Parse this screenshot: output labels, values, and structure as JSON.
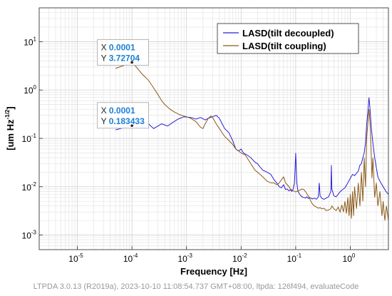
{
  "chart_data": {
    "type": "line",
    "xscale": "log",
    "yscale": "log",
    "xlim": [
      2e-06,
      5
    ],
    "ylim": [
      0.0005,
      50
    ],
    "xlabel": "Frequency  [Hz]",
    "ylabel_main": "[um Hz",
    "ylabel_exp": "-1/2",
    "ylabel_end": "]",
    "grid": true,
    "legend_position": "top-right",
    "x_ticks": [
      {
        "value": 1e-05,
        "base": "10",
        "exp": "-5"
      },
      {
        "value": 0.0001,
        "base": "10",
        "exp": "-4"
      },
      {
        "value": 0.001,
        "base": "10",
        "exp": "-3"
      },
      {
        "value": 0.01,
        "base": "10",
        "exp": "-2"
      },
      {
        "value": 0.1,
        "base": "10",
        "exp": "-1"
      },
      {
        "value": 1,
        "base": "10",
        "exp": "0"
      }
    ],
    "y_ticks": [
      {
        "value": 0.001,
        "base": "10",
        "exp": "-3"
      },
      {
        "value": 0.01,
        "base": "10",
        "exp": "-2"
      },
      {
        "value": 0.1,
        "base": "10",
        "exp": "-1"
      },
      {
        "value": 1,
        "base": "10",
        "exp": "0"
      },
      {
        "value": 10,
        "base": "10",
        "exp": "1"
      }
    ],
    "series": [
      {
        "name": "LASD(tilt decoupled)",
        "color": "#2a1fd6",
        "points": [
          [
            5e-05,
            0.15
          ],
          [
            7e-05,
            0.165
          ],
          [
            0.0001,
            0.183
          ],
          [
            0.00013,
            0.2
          ],
          [
            0.00016,
            0.21
          ],
          [
            0.0002,
            0.2
          ],
          [
            0.00025,
            0.16
          ],
          [
            0.0003,
            0.18
          ],
          [
            0.00035,
            0.2
          ],
          [
            0.00045,
            0.18
          ],
          [
            0.00055,
            0.21
          ],
          [
            0.0007,
            0.25
          ],
          [
            0.0009,
            0.28
          ],
          [
            0.0012,
            0.27
          ],
          [
            0.0015,
            0.25
          ],
          [
            0.0018,
            0.27
          ],
          [
            0.0022,
            0.24
          ],
          [
            0.0025,
            0.26
          ],
          [
            0.003,
            0.28
          ],
          [
            0.0035,
            0.3
          ],
          [
            0.004,
            0.26
          ],
          [
            0.0045,
            0.2
          ],
          [
            0.005,
            0.16
          ],
          [
            0.006,
            0.13
          ],
          [
            0.007,
            0.09
          ],
          [
            0.008,
            0.06
          ],
          [
            0.009,
            0.055
          ],
          [
            0.01,
            0.06
          ],
          [
            0.011,
            0.05
          ],
          [
            0.013,
            0.045
          ],
          [
            0.015,
            0.04
          ],
          [
            0.018,
            0.032
          ],
          [
            0.02,
            0.03
          ],
          [
            0.022,
            0.026
          ],
          [
            0.025,
            0.022
          ],
          [
            0.03,
            0.02
          ],
          [
            0.035,
            0.018
          ],
          [
            0.04,
            0.014
          ],
          [
            0.045,
            0.012
          ],
          [
            0.05,
            0.01
          ],
          [
            0.055,
            0.0095
          ],
          [
            0.06,
            0.011
          ],
          [
            0.065,
            0.0088
          ],
          [
            0.07,
            0.009
          ],
          [
            0.075,
            0.0082
          ],
          [
            0.08,
            0.0086
          ],
          [
            0.085,
            0.008
          ],
          [
            0.09,
            0.009
          ],
          [
            0.095,
            0.012
          ],
          [
            0.1,
            0.05
          ],
          [
            0.105,
            0.012
          ],
          [
            0.11,
            0.008
          ],
          [
            0.12,
            0.0068
          ],
          [
            0.13,
            0.0062
          ],
          [
            0.14,
            0.006
          ],
          [
            0.15,
            0.0058
          ],
          [
            0.16,
            0.0062
          ],
          [
            0.17,
            0.0057
          ],
          [
            0.18,
            0.006
          ],
          [
            0.19,
            0.0058
          ],
          [
            0.2,
            0.0056
          ],
          [
            0.22,
            0.0058
          ],
          [
            0.24,
            0.0055
          ],
          [
            0.26,
            0.0062
          ],
          [
            0.27,
            0.012
          ],
          [
            0.28,
            0.0065
          ],
          [
            0.3,
            0.0058
          ],
          [
            0.33,
            0.0055
          ],
          [
            0.36,
            0.0058
          ],
          [
            0.4,
            0.0062
          ],
          [
            0.44,
            0.008
          ],
          [
            0.45,
            0.028
          ],
          [
            0.46,
            0.009
          ],
          [
            0.5,
            0.0065
          ],
          [
            0.55,
            0.0062
          ],
          [
            0.6,
            0.007
          ],
          [
            0.65,
            0.0078
          ],
          [
            0.7,
            0.0085
          ],
          [
            0.75,
            0.009
          ],
          [
            0.8,
            0.0095
          ],
          [
            0.9,
            0.012
          ],
          [
            1.0,
            0.015
          ],
          [
            1.1,
            0.018
          ],
          [
            1.2,
            0.017
          ],
          [
            1.3,
            0.019
          ],
          [
            1.4,
            0.021
          ],
          [
            1.5,
            0.028
          ],
          [
            1.6,
            0.03
          ],
          [
            1.7,
            0.04
          ],
          [
            1.8,
            0.05
          ],
          [
            1.9,
            0.08
          ],
          [
            2.0,
            0.2
          ],
          [
            2.1,
            0.35
          ],
          [
            2.2,
            0.7
          ],
          [
            2.3,
            0.4
          ],
          [
            2.4,
            0.2
          ],
          [
            2.5,
            0.12
          ],
          [
            2.6,
            0.08
          ],
          [
            2.8,
            0.04
          ],
          [
            3.0,
            0.025
          ],
          [
            3.2,
            0.016
          ],
          [
            3.5,
            0.013
          ],
          [
            4.0,
            0.01
          ],
          [
            4.5,
            0.008
          ],
          [
            5.0,
            0.007
          ]
        ]
      },
      {
        "name": "LASD(tilt coupling)",
        "color": "#8b5a1a",
        "points": [
          [
            5e-05,
            2.8
          ],
          [
            7e-05,
            3.2
          ],
          [
            0.0001,
            3.727
          ],
          [
            0.00012,
            3.0
          ],
          [
            0.00015,
            2.2
          ],
          [
            0.0002,
            1.6
          ],
          [
            0.00025,
            1.1
          ],
          [
            0.0003,
            0.8
          ],
          [
            0.00035,
            0.6
          ],
          [
            0.0004,
            0.5
          ],
          [
            0.0005,
            0.4
          ],
          [
            0.0006,
            0.35
          ],
          [
            0.0007,
            0.32
          ],
          [
            0.0008,
            0.3
          ],
          [
            0.001,
            0.28
          ],
          [
            0.0012,
            0.26
          ],
          [
            0.0015,
            0.22
          ],
          [
            0.0018,
            0.17
          ],
          [
            0.002,
            0.16
          ],
          [
            0.0022,
            0.2
          ],
          [
            0.0025,
            0.26
          ],
          [
            0.0028,
            0.29
          ],
          [
            0.003,
            0.27
          ],
          [
            0.0035,
            0.2
          ],
          [
            0.004,
            0.16
          ],
          [
            0.0045,
            0.13
          ],
          [
            0.005,
            0.11
          ],
          [
            0.006,
            0.09
          ],
          [
            0.007,
            0.075
          ],
          [
            0.008,
            0.06
          ],
          [
            0.01,
            0.05
          ],
          [
            0.012,
            0.045
          ],
          [
            0.015,
            0.03
          ],
          [
            0.018,
            0.022
          ],
          [
            0.02,
            0.02
          ],
          [
            0.025,
            0.016
          ],
          [
            0.03,
            0.013
          ],
          [
            0.035,
            0.012
          ],
          [
            0.04,
            0.012
          ],
          [
            0.045,
            0.011
          ],
          [
            0.05,
            0.012
          ],
          [
            0.055,
            0.014
          ],
          [
            0.06,
            0.016
          ],
          [
            0.065,
            0.012
          ],
          [
            0.07,
            0.011
          ],
          [
            0.075,
            0.01
          ],
          [
            0.08,
            0.009
          ],
          [
            0.085,
            0.0085
          ],
          [
            0.09,
            0.0082
          ],
          [
            0.1,
            0.0078
          ],
          [
            0.11,
            0.0082
          ],
          [
            0.12,
            0.0085
          ],
          [
            0.13,
            0.009
          ],
          [
            0.14,
            0.0088
          ],
          [
            0.15,
            0.008
          ],
          [
            0.17,
            0.0065
          ],
          [
            0.19,
            0.005
          ],
          [
            0.2,
            0.0045
          ],
          [
            0.22,
            0.004
          ],
          [
            0.24,
            0.0038
          ],
          [
            0.26,
            0.0036
          ],
          [
            0.28,
            0.0037
          ],
          [
            0.3,
            0.0035
          ],
          [
            0.33,
            0.0036
          ],
          [
            0.36,
            0.0032
          ],
          [
            0.4,
            0.0033
          ],
          [
            0.44,
            0.0035
          ],
          [
            0.46,
            0.004
          ],
          [
            0.5,
            0.0035
          ],
          [
            0.55,
            0.0032
          ],
          [
            0.6,
            0.0038
          ],
          [
            0.65,
            0.003
          ],
          [
            0.7,
            0.0042
          ],
          [
            0.75,
            0.003
          ],
          [
            0.8,
            0.005
          ],
          [
            0.85,
            0.0028
          ],
          [
            0.9,
            0.006
          ],
          [
            0.95,
            0.0025
          ],
          [
            1.0,
            0.007
          ],
          [
            1.05,
            0.0022
          ],
          [
            1.1,
            0.008
          ],
          [
            1.15,
            0.0025
          ],
          [
            1.2,
            0.01
          ],
          [
            1.3,
            0.0035
          ],
          [
            1.4,
            0.012
          ],
          [
            1.5,
            0.004
          ],
          [
            1.6,
            0.02
          ],
          [
            1.7,
            0.005
          ],
          [
            1.8,
            0.04
          ],
          [
            1.9,
            0.01
          ],
          [
            2.0,
            0.1
          ],
          [
            2.1,
            0.2
          ],
          [
            2.2,
            0.4
          ],
          [
            2.3,
            0.2
          ],
          [
            2.4,
            0.06
          ],
          [
            2.5,
            0.015
          ],
          [
            2.6,
            0.04
          ],
          [
            2.8,
            0.006
          ],
          [
            3.0,
            0.012
          ],
          [
            3.2,
            0.004
          ],
          [
            3.5,
            0.008
          ],
          [
            3.8,
            0.0025
          ],
          [
            4.0,
            0.005
          ],
          [
            4.3,
            0.002
          ],
          [
            4.6,
            0.004
          ],
          [
            5.0,
            0.002
          ]
        ]
      }
    ],
    "datatips": [
      {
        "x_prefix": "X",
        "x_value": "0.0001",
        "y_prefix": "Y",
        "y_value": "3.72704",
        "at_x": 0.0001,
        "at_y": 3.72704,
        "box_x": 2e-05,
        "box_y": 11
      },
      {
        "x_prefix": "X",
        "x_value": "0.0001",
        "y_prefix": "Y",
        "y_value": "0.183433",
        "at_x": 0.0001,
        "at_y": 0.183433,
        "box_x": 2e-05,
        "box_y": 0.55
      }
    ]
  },
  "footer": "LTPDA 3.0.13 (R2019a), 2023-10-10 11:08:54.737 GMT+08:00, ltpda: 126f494, evaluateCode"
}
